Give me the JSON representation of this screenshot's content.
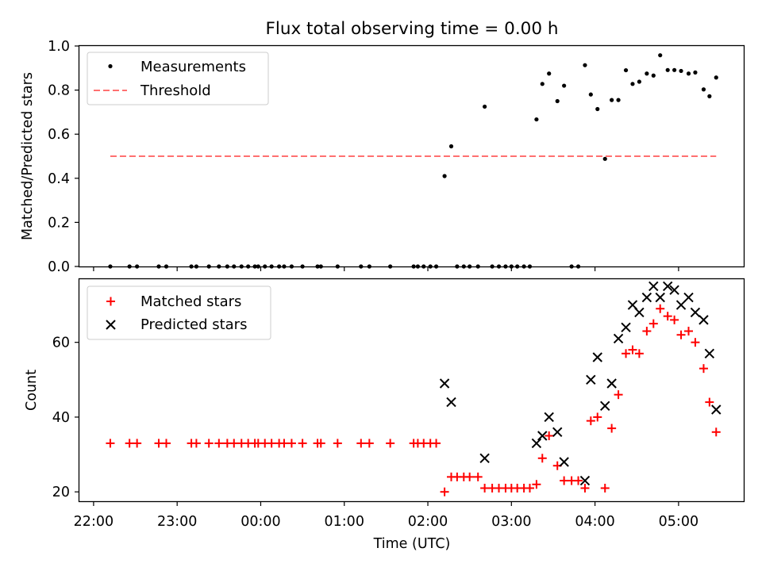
{
  "chart_data": [
    {
      "type": "scatter",
      "title": "Flux total observing time = 0.00 h",
      "xlabel": "",
      "ylabel": "Matched/Predicted stars",
      "xlim": [
        21.83,
        29.78
      ],
      "ylim": [
        0.0,
        1.0
      ],
      "yticks": [
        0.0,
        0.2,
        0.4,
        0.6,
        0.8,
        1.0
      ],
      "ytick_labels": [
        "0.0",
        "0.2",
        "0.4",
        "0.6",
        "0.8",
        "1.0"
      ],
      "legend_position": "top-left",
      "series": [
        {
          "name": "Measurements",
          "marker": "dot",
          "color": "#000000",
          "points": [
            [
              22.2,
              0.0
            ],
            [
              22.43,
              0.0
            ],
            [
              22.52,
              0.0
            ],
            [
              22.78,
              0.0
            ],
            [
              22.87,
              0.0
            ],
            [
              23.17,
              0.0
            ],
            [
              23.23,
              0.0
            ],
            [
              23.38,
              0.0
            ],
            [
              23.5,
              0.0
            ],
            [
              23.6,
              0.0
            ],
            [
              23.68,
              0.0
            ],
            [
              23.77,
              0.0
            ],
            [
              23.85,
              0.0
            ],
            [
              23.93,
              0.0
            ],
            [
              23.97,
              0.0
            ],
            [
              24.05,
              0.0
            ],
            [
              24.13,
              0.0
            ],
            [
              24.22,
              0.0
            ],
            [
              24.28,
              0.0
            ],
            [
              24.37,
              0.0
            ],
            [
              24.5,
              0.0
            ],
            [
              24.68,
              0.0
            ],
            [
              24.72,
              0.0
            ],
            [
              24.92,
              0.0
            ],
            [
              25.2,
              0.0
            ],
            [
              25.3,
              0.0
            ],
            [
              25.55,
              0.0
            ],
            [
              25.83,
              0.0
            ],
            [
              25.88,
              0.0
            ],
            [
              25.95,
              0.0
            ],
            [
              26.03,
              0.0
            ],
            [
              26.1,
              0.0
            ],
            [
              26.2,
              0.41
            ],
            [
              26.28,
              0.545
            ],
            [
              26.35,
              0.0
            ],
            [
              26.43,
              0.0
            ],
            [
              26.5,
              0.0
            ],
            [
              26.6,
              0.0
            ],
            [
              26.68,
              0.725
            ],
            [
              26.77,
              0.0
            ],
            [
              26.85,
              0.0
            ],
            [
              26.93,
              0.0
            ],
            [
              27.0,
              0.0
            ],
            [
              27.07,
              0.0
            ],
            [
              27.15,
              0.0
            ],
            [
              27.22,
              0.0
            ],
            [
              27.3,
              0.667
            ],
            [
              27.37,
              0.828
            ],
            [
              27.45,
              0.875
            ],
            [
              27.55,
              0.75
            ],
            [
              27.63,
              0.82
            ],
            [
              27.72,
              0.0
            ],
            [
              27.8,
              0.0
            ],
            [
              27.88,
              0.913
            ],
            [
              27.95,
              0.78
            ],
            [
              28.03,
              0.714
            ],
            [
              28.12,
              0.488
            ],
            [
              28.2,
              0.755
            ],
            [
              28.28,
              0.755
            ],
            [
              28.37,
              0.89
            ],
            [
              28.45,
              0.828
            ],
            [
              28.53,
              0.838
            ],
            [
              28.62,
              0.875
            ],
            [
              28.7,
              0.866
            ],
            [
              28.78,
              0.958
            ],
            [
              28.87,
              0.891
            ],
            [
              28.95,
              0.891
            ],
            [
              29.03,
              0.887
            ],
            [
              29.12,
              0.875
            ],
            [
              29.2,
              0.88
            ],
            [
              29.3,
              0.803
            ],
            [
              29.37,
              0.772
            ],
            [
              29.45,
              0.857
            ]
          ]
        },
        {
          "name": "Threshold",
          "marker": "dashed-line",
          "color": "#ff7070",
          "points": [
            [
              22.2,
              0.5
            ],
            [
              29.45,
              0.5
            ]
          ]
        }
      ]
    },
    {
      "type": "scatter",
      "title": "",
      "xlabel": "Time (UTC)",
      "ylabel": "Count",
      "xlim": [
        21.83,
        29.78
      ],
      "ylim": [
        17.5,
        76.9
      ],
      "yticks": [
        20,
        40,
        60
      ],
      "ytick_labels": [
        "20",
        "40",
        "60"
      ],
      "xticks": [
        22,
        23,
        24,
        25,
        26,
        27,
        28,
        29
      ],
      "xtick_labels": [
        "22:00",
        "23:00",
        "00:00",
        "01:00",
        "02:00",
        "03:00",
        "04:00",
        "05:00"
      ],
      "legend_position": "top-left",
      "series": [
        {
          "name": "Matched stars",
          "marker": "plus",
          "color": "#ff0000",
          "points": [
            [
              22.2,
              33
            ],
            [
              22.43,
              33
            ],
            [
              22.52,
              33
            ],
            [
              22.78,
              33
            ],
            [
              22.87,
              33
            ],
            [
              23.17,
              33
            ],
            [
              23.23,
              33
            ],
            [
              23.38,
              33
            ],
            [
              23.5,
              33
            ],
            [
              23.6,
              33
            ],
            [
              23.68,
              33
            ],
            [
              23.77,
              33
            ],
            [
              23.85,
              33
            ],
            [
              23.93,
              33
            ],
            [
              23.97,
              33
            ],
            [
              24.05,
              33
            ],
            [
              24.13,
              33
            ],
            [
              24.22,
              33
            ],
            [
              24.28,
              33
            ],
            [
              24.37,
              33
            ],
            [
              24.5,
              33
            ],
            [
              24.68,
              33
            ],
            [
              24.72,
              33
            ],
            [
              24.92,
              33
            ],
            [
              25.2,
              33
            ],
            [
              25.3,
              33
            ],
            [
              25.55,
              33
            ],
            [
              25.83,
              33
            ],
            [
              25.88,
              33
            ],
            [
              25.95,
              33
            ],
            [
              26.03,
              33
            ],
            [
              26.1,
              33
            ],
            [
              26.2,
              20
            ],
            [
              26.28,
              24
            ],
            [
              26.35,
              24
            ],
            [
              26.43,
              24
            ],
            [
              26.5,
              24
            ],
            [
              26.6,
              24
            ],
            [
              26.68,
              21
            ],
            [
              26.77,
              21
            ],
            [
              26.85,
              21
            ],
            [
              26.93,
              21
            ],
            [
              27.0,
              21
            ],
            [
              27.07,
              21
            ],
            [
              27.15,
              21
            ],
            [
              27.22,
              21
            ],
            [
              27.3,
              22
            ],
            [
              27.37,
              29
            ],
            [
              27.45,
              35
            ],
            [
              27.55,
              27
            ],
            [
              27.63,
              23
            ],
            [
              27.72,
              23
            ],
            [
              27.8,
              23
            ],
            [
              27.88,
              21
            ],
            [
              27.95,
              39
            ],
            [
              28.03,
              40
            ],
            [
              28.12,
              21
            ],
            [
              28.2,
              37
            ],
            [
              28.28,
              46
            ],
            [
              28.37,
              57
            ],
            [
              28.45,
              58
            ],
            [
              28.53,
              57
            ],
            [
              28.62,
              63
            ],
            [
              28.7,
              65
            ],
            [
              28.78,
              69
            ],
            [
              28.87,
              67
            ],
            [
              28.95,
              66
            ],
            [
              29.03,
              62
            ],
            [
              29.12,
              63
            ],
            [
              29.2,
              60
            ],
            [
              29.3,
              53
            ],
            [
              29.37,
              44
            ],
            [
              29.45,
              36
            ]
          ]
        },
        {
          "name": "Predicted stars",
          "marker": "x",
          "color": "#000000",
          "points": [
            [
              26.2,
              49
            ],
            [
              26.28,
              44
            ],
            [
              26.68,
              29
            ],
            [
              27.3,
              33
            ],
            [
              27.37,
              35
            ],
            [
              27.45,
              40
            ],
            [
              27.55,
              36
            ],
            [
              27.63,
              28
            ],
            [
              27.88,
              23
            ],
            [
              27.95,
              50
            ],
            [
              28.03,
              56
            ],
            [
              28.12,
              43
            ],
            [
              28.2,
              49
            ],
            [
              28.28,
              61
            ],
            [
              28.37,
              64
            ],
            [
              28.45,
              70
            ],
            [
              28.53,
              68
            ],
            [
              28.62,
              72
            ],
            [
              28.7,
              75
            ],
            [
              28.78,
              72
            ],
            [
              28.87,
              75
            ],
            [
              28.95,
              74
            ],
            [
              29.03,
              70
            ],
            [
              29.12,
              72
            ],
            [
              29.2,
              68
            ],
            [
              29.3,
              66
            ],
            [
              29.37,
              57
            ],
            [
              29.45,
              42
            ]
          ]
        }
      ]
    }
  ]
}
